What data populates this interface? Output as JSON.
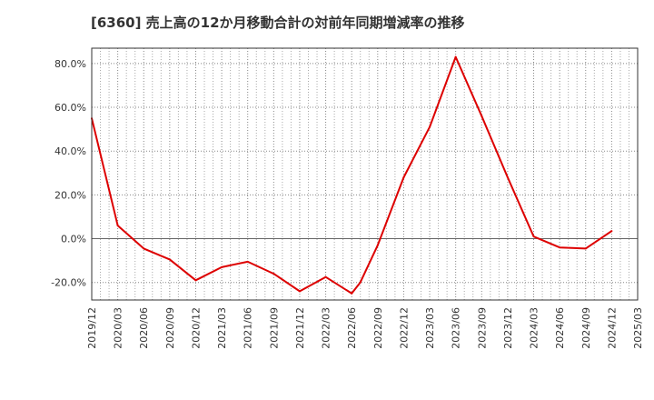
{
  "chart_data": {
    "type": "line",
    "title": "[6360]  売上高の12か月移動合計の対前年同期増減率の推移",
    "xlabel": "",
    "ylabel": "",
    "x": [
      "2019/12",
      "2020/03",
      "2020/06",
      "2020/09",
      "2020/12",
      "2021/03",
      "2021/06",
      "2021/09",
      "2021/12",
      "2022/03",
      "2022/06",
      "2022/07",
      "2022/09",
      "2022/12",
      "2023/03",
      "2023/06",
      "2023/09",
      "2023/12",
      "2024/03",
      "2024/06",
      "2024/09",
      "2024/12"
    ],
    "x_index": [
      0,
      1,
      2,
      3,
      4,
      5,
      6,
      7,
      8,
      9,
      10,
      10.33,
      11,
      12,
      13,
      14,
      15,
      16,
      17,
      18,
      19,
      20
    ],
    "series": [
      {
        "name": "対前年同期増減率",
        "values": [
          55.0,
          6.0,
          -4.5,
          -9.5,
          -19.0,
          -13.0,
          -10.5,
          -16.0,
          -24.0,
          -17.5,
          -25.0,
          -20.0,
          -3.0,
          28.0,
          51.0,
          83.0,
          56.0,
          28.0,
          1.0,
          -4.0,
          -4.5,
          3.5
        ],
        "color": "#dd0000"
      }
    ],
    "x_tick_labels": [
      "2019/12",
      "2020/03",
      "2020/06",
      "2020/09",
      "2020/12",
      "2021/03",
      "2021/06",
      "2021/09",
      "2021/12",
      "2022/03",
      "2022/06",
      "2022/09",
      "2022/12",
      "2023/03",
      "2023/06",
      "2023/09",
      "2023/12",
      "2024/03",
      "2024/06",
      "2024/09",
      "2024/12",
      "2025/03"
    ],
    "y_ticks": [
      -20,
      0,
      20,
      40,
      60,
      80
    ],
    "y_tick_labels": [
      "-20.0%",
      "0.0%",
      "20.0%",
      "40.0%",
      "60.0%",
      "80.0%"
    ],
    "xlim": [
      0,
      21
    ],
    "ylim": [
      -28,
      87
    ],
    "grid": true,
    "legend": "none"
  }
}
